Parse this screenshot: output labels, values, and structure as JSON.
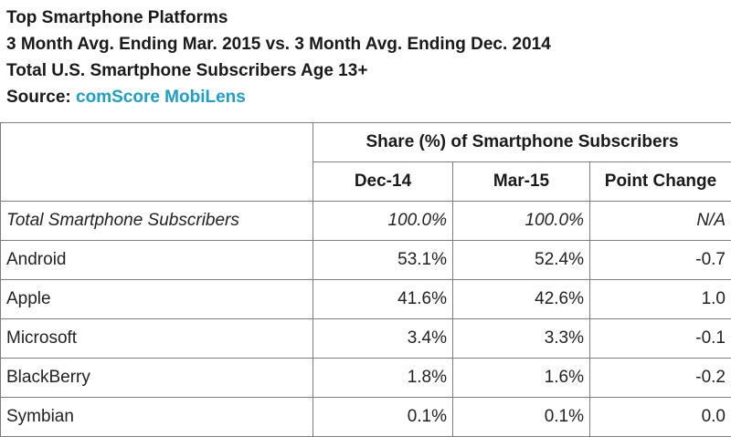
{
  "header": {
    "title": "Top Smartphone Platforms",
    "subtitle": "3 Month Avg. Ending Mar. 2015 vs. 3 Month Avg. Ending Dec. 2014",
    "population": "Total U.S. Smartphone Subscribers Age 13+",
    "source_label": "Source: ",
    "source_name": "comScore MobiLens"
  },
  "colors": {
    "source_link": "#1aa0c8",
    "grid": "#7d7d7d",
    "text": "#222222"
  },
  "chart_data": {
    "type": "table",
    "group_header": "Share (%) of Smartphone Subscribers",
    "columns": [
      "Dec-14",
      "Mar-15",
      "Point Change"
    ],
    "rows": [
      {
        "platform": "Total Smartphone Subscribers",
        "dec14": "100.0%",
        "mar15": "100.0%",
        "change": "N/A"
      },
      {
        "platform": "Android",
        "dec14": "53.1%",
        "mar15": "52.4%",
        "change": "-0.7"
      },
      {
        "platform": "Apple",
        "dec14": "41.6%",
        "mar15": "42.6%",
        "change": "1.0"
      },
      {
        "platform": "Microsoft",
        "dec14": "3.4%",
        "mar15": "3.3%",
        "change": "-0.1"
      },
      {
        "platform": "BlackBerry",
        "dec14": "1.8%",
        "mar15": "1.6%",
        "change": "-0.2"
      },
      {
        "platform": "Symbian",
        "dec14": "0.1%",
        "mar15": "0.1%",
        "change": "0.0"
      }
    ]
  }
}
